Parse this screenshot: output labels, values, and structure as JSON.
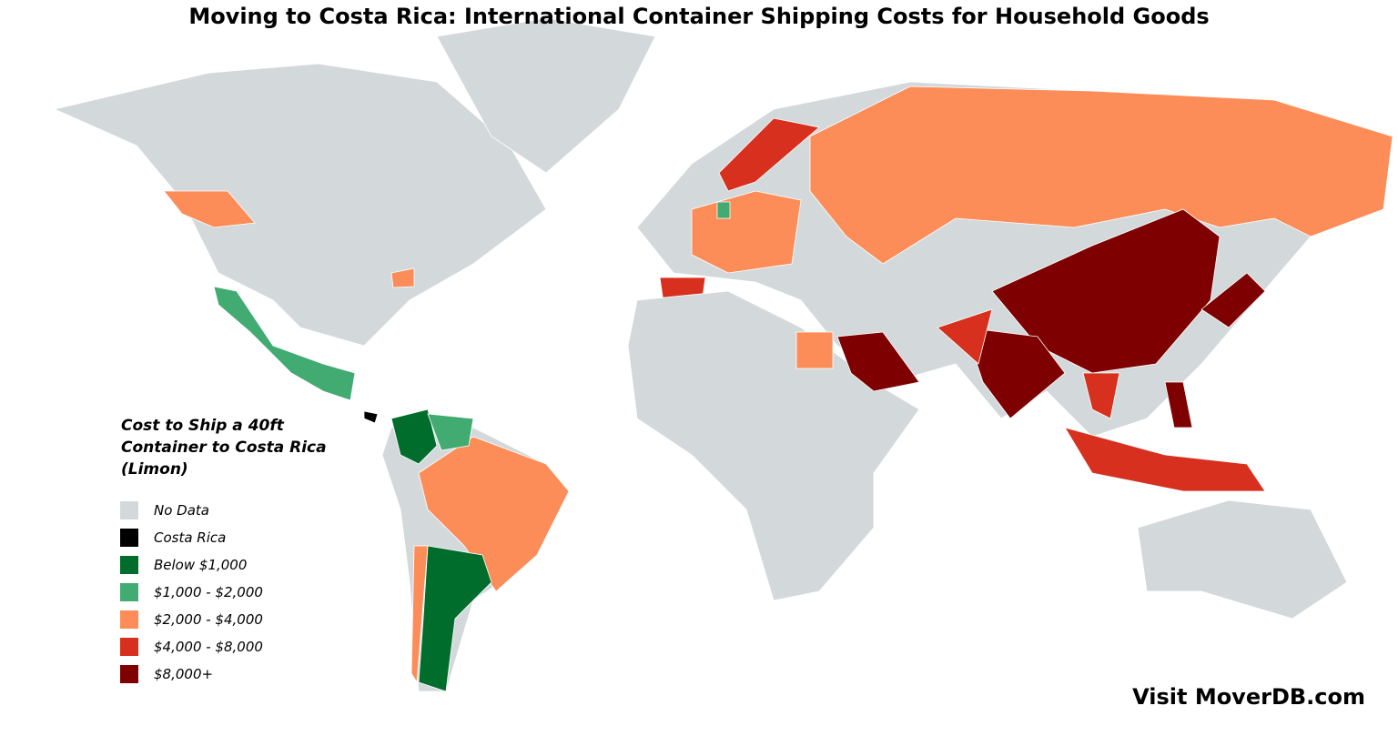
{
  "title": "Moving to Costa Rica: International Container Shipping Costs for Household Goods",
  "legend": {
    "title": "Cost to Ship a 40ft Container to Costa Rica (Limon)",
    "items": [
      {
        "label": "No Data",
        "color": "#d3d9db"
      },
      {
        "label": "Costa Rica",
        "color": "#000000"
      },
      {
        "label": "Below $1,000",
        "color": "#006d2c"
      },
      {
        "label": "$1,000 - $2,000",
        "color": "#41ab72"
      },
      {
        "label": "$2,000 - $4,000",
        "color": "#fc8d59"
      },
      {
        "label": "$4,000 - $8,000",
        "color": "#d7301f"
      },
      {
        "label": "$8,000+",
        "color": "#7f0000"
      }
    ]
  },
  "footer": "Visit MoverDB.com"
}
